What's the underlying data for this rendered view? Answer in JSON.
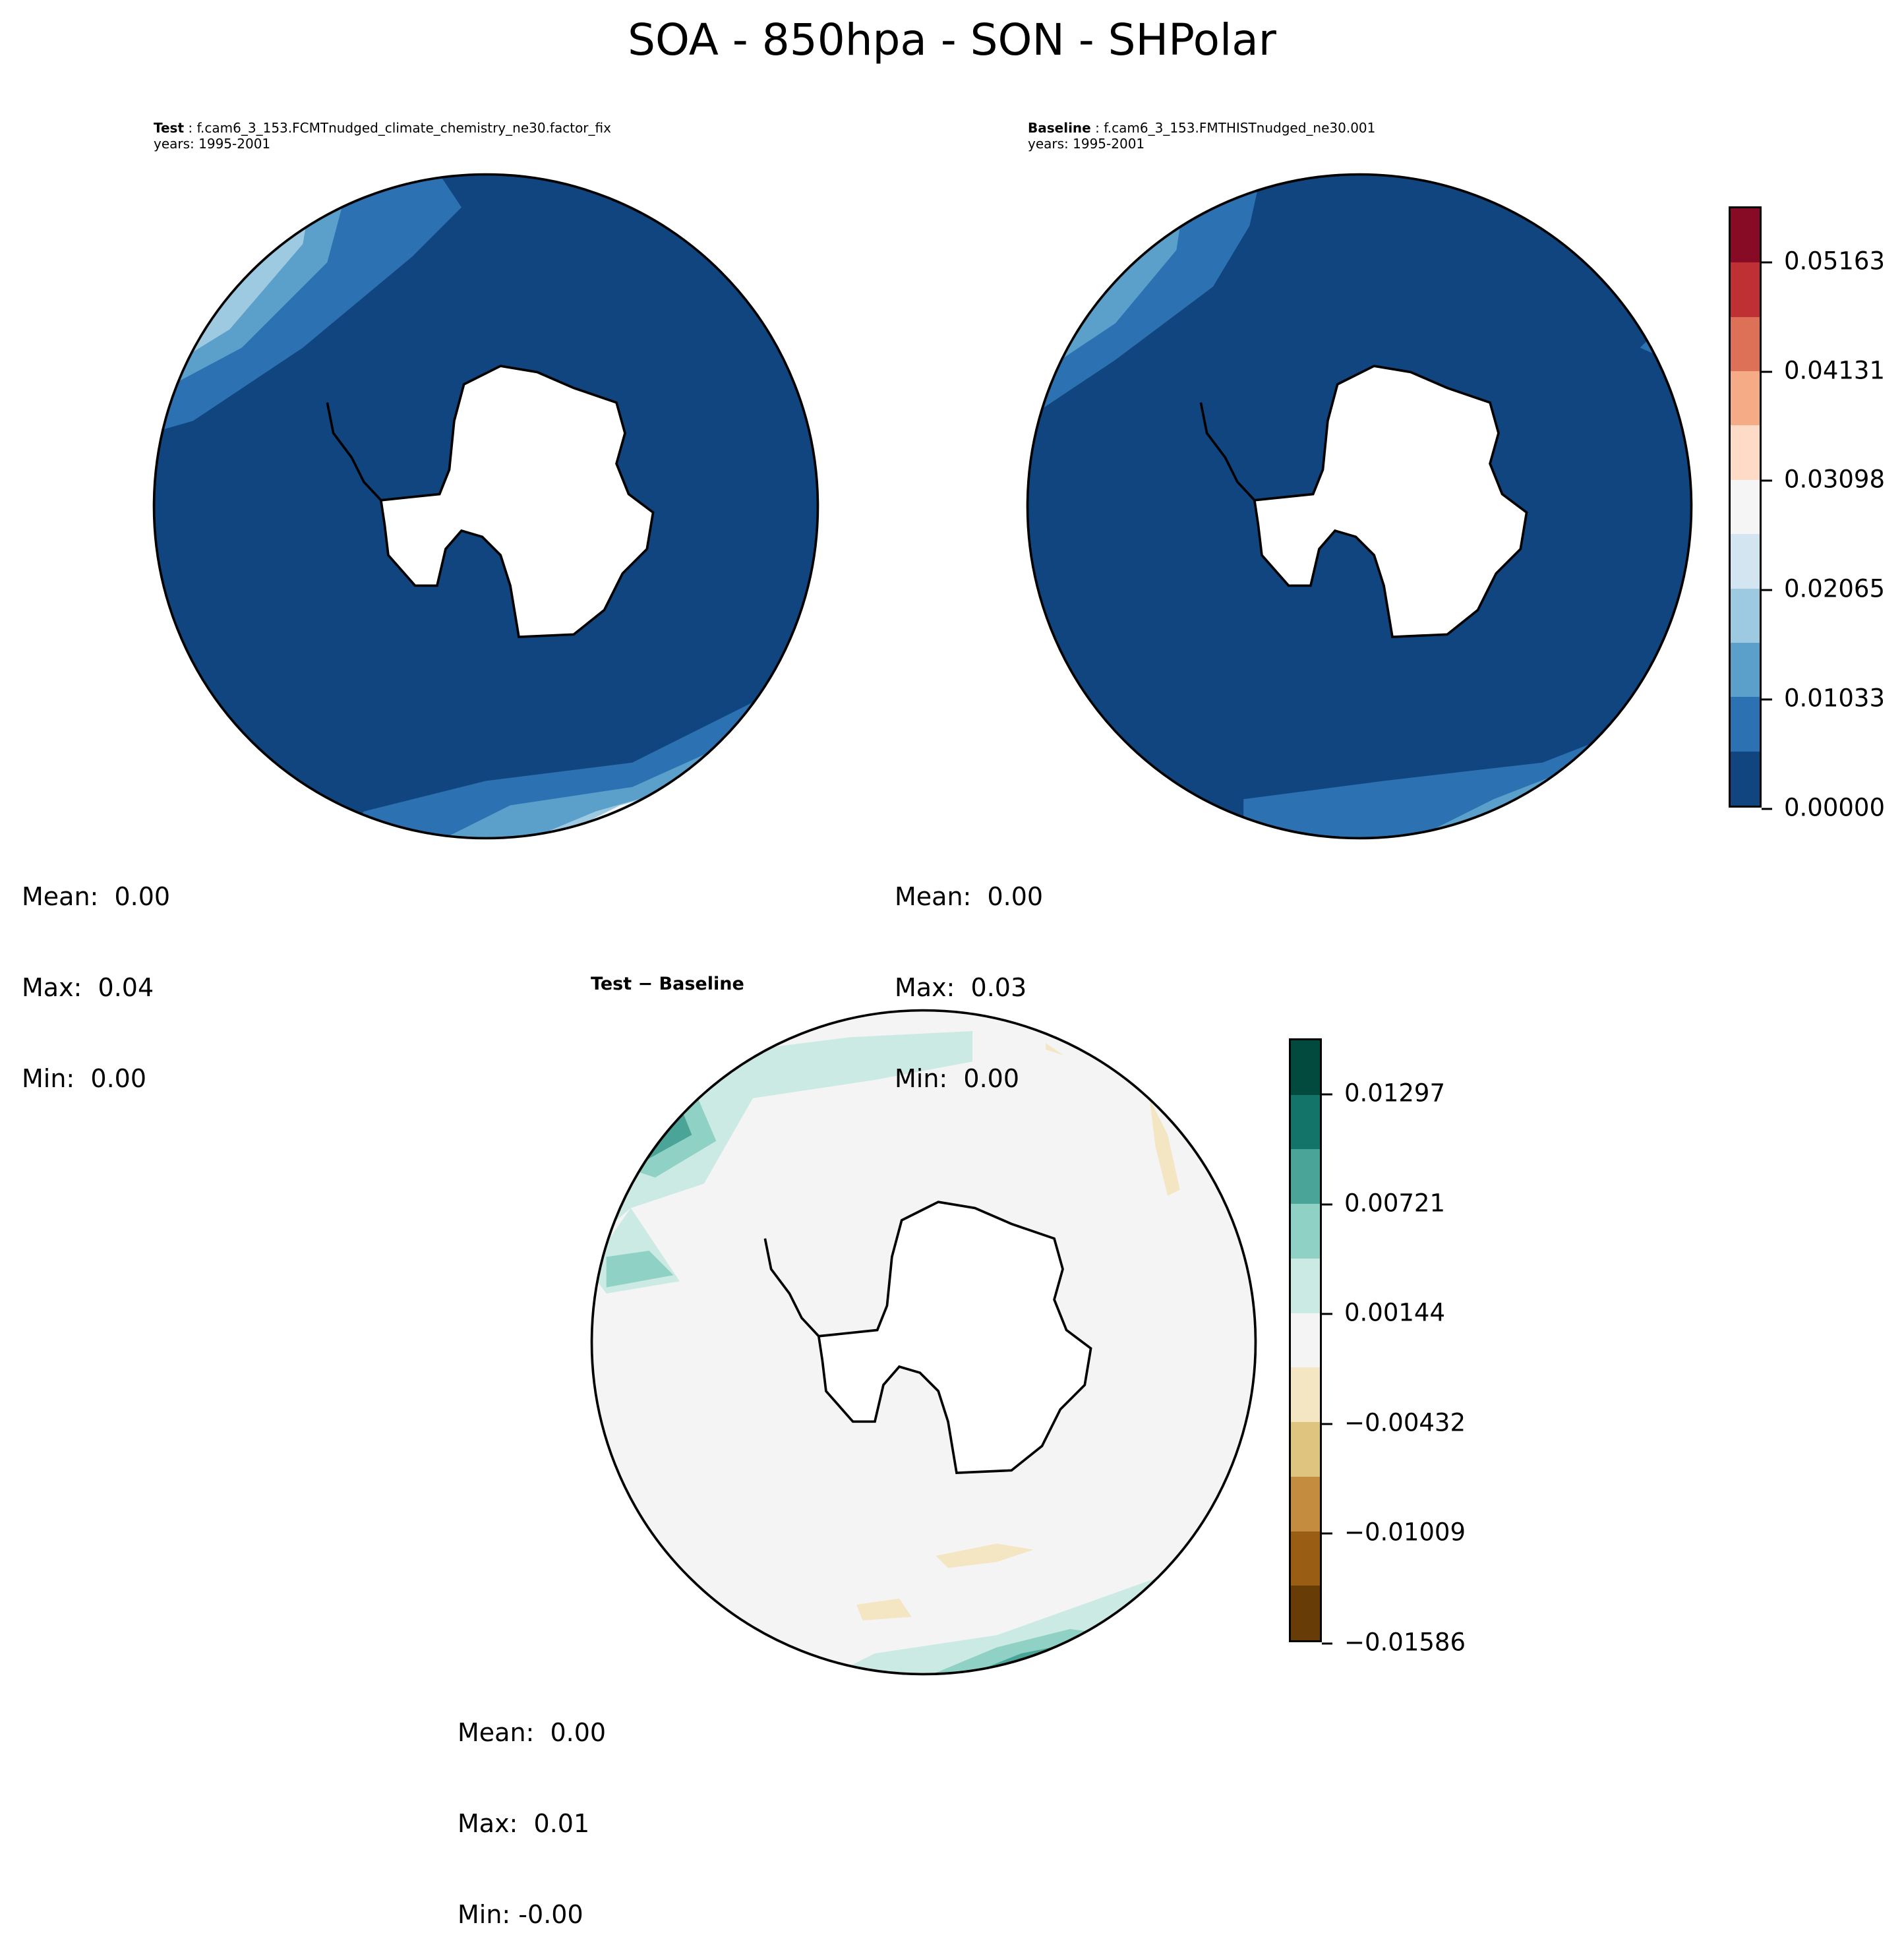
{
  "title": "SOA - 850hpa - SON - SHPolar",
  "panels": [
    {
      "label": "Test",
      "case": " : f.cam6_3_153.FCMTnudged_climate_chemistry_ne30.factor_fix",
      "years": "years: 1995-2001",
      "stats": {
        "mean": "Mean:  0.00",
        "max": "Max:  0.04",
        "min": "Min:  0.00"
      }
    },
    {
      "label": "Baseline",
      "case": " : f.cam6_3_153.FMTHISTnudged_ne30.001",
      "years": "years: 1995-2001",
      "stats": {
        "mean": "Mean:  0.00",
        "max": "Max:  0.03",
        "min": "Min:  0.00"
      }
    },
    {
      "label": "Test − Baseline",
      "stats": {
        "mean": "Mean:  0.00",
        "max": "Max:  0.01",
        "min": "Min: -0.00"
      }
    }
  ],
  "chart_data": [
    {
      "type": "heatmap",
      "projection": "South Polar Stereographic",
      "panel": "Test",
      "colorbar": {
        "range": [
          0,
          0.05679
        ],
        "ticks": [
          "0.00000",
          "0.01033",
          "0.02065",
          "0.03098",
          "0.04131",
          "0.05163"
        ],
        "colors": [
          "#114580",
          "#2c72b3",
          "#5aa0cb",
          "#9ecae1",
          "#d3e5f0",
          "#f5f5f5",
          "#fddbc7",
          "#f4ab86",
          "#dd7158",
          "#bf3035",
          "#870b25"
        ]
      }
    },
    {
      "type": "heatmap",
      "projection": "South Polar Stereographic",
      "panel": "Baseline",
      "colorbar": "shared with Test"
    },
    {
      "type": "heatmap",
      "projection": "South Polar Stereographic",
      "panel": "Test − Baseline",
      "colorbar": {
        "range": [
          -0.01586,
          0.01586
        ],
        "ticks": [
          "−0.01586",
          "−0.01009",
          "−0.00432",
          "0.00144",
          "0.00721",
          "0.01297"
        ],
        "colors": [
          "#683c07",
          "#995d13",
          "#c38c3e",
          "#dfc47f",
          "#f4e6c3",
          "#f3f4f3",
          "#cbeae4",
          "#8fd1c4",
          "#4aa497",
          "#137569",
          "#024a3e"
        ]
      }
    }
  ]
}
